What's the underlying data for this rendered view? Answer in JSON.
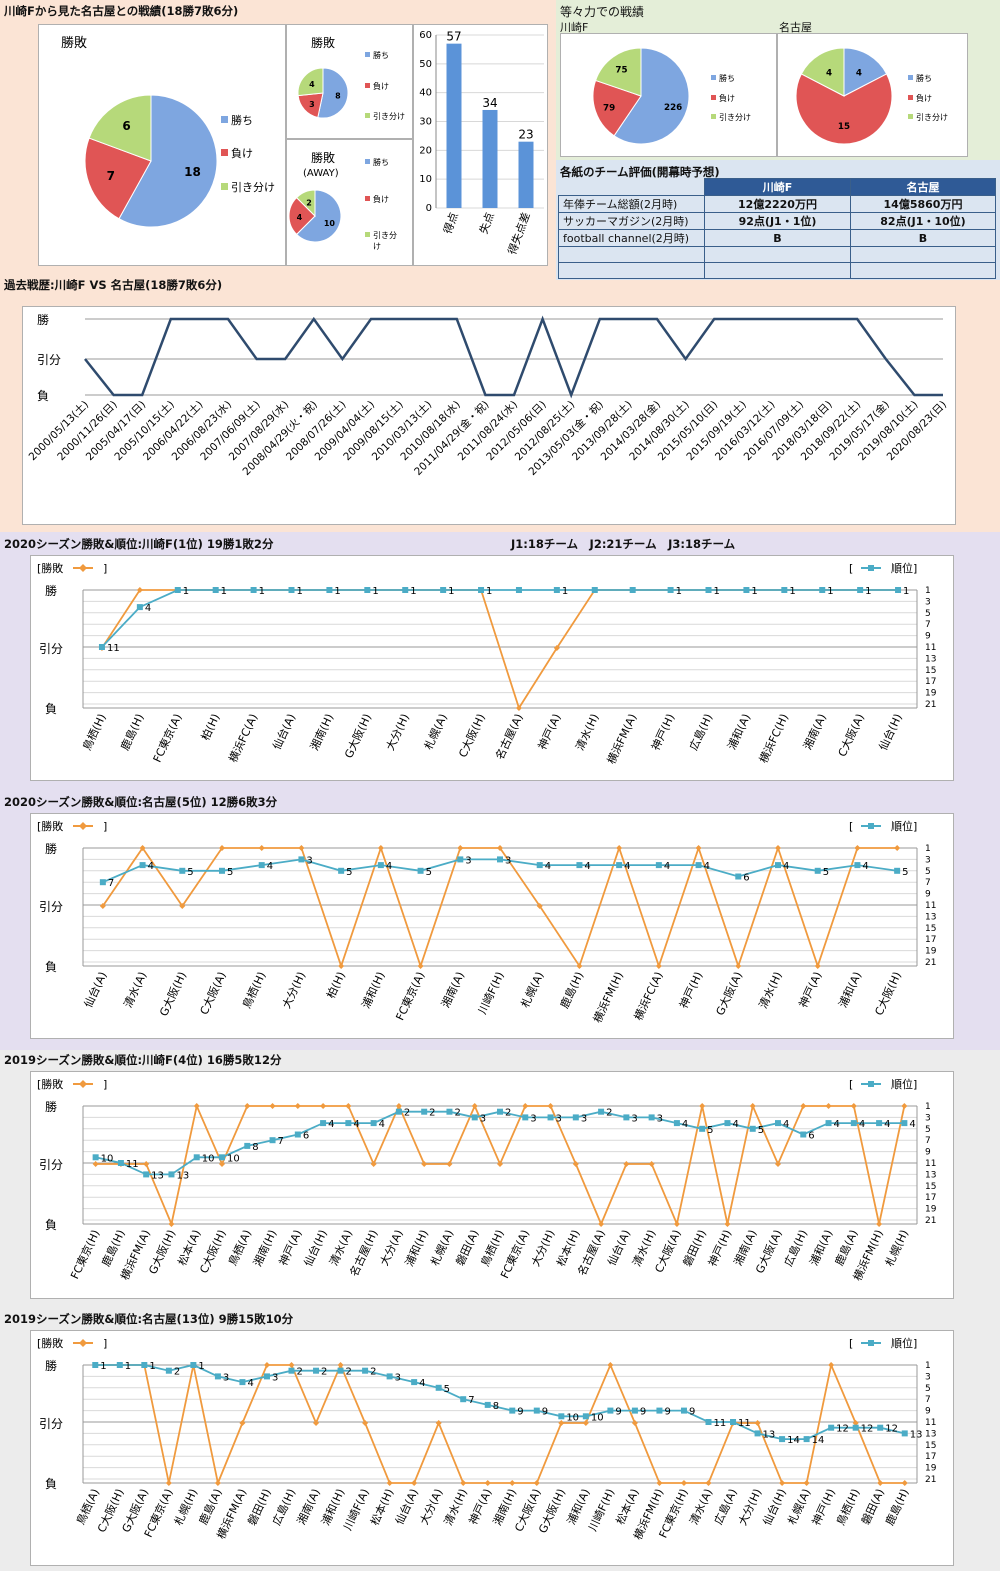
{
  "colors": {
    "win": "#7ea6e0",
    "loss": "#e05555",
    "draw": "#b6d97a",
    "nav": "#2f4b6e",
    "orange": "#f09a3e",
    "teal": "#4bacc6",
    "bar": "#5b93d8"
  },
  "s1": {
    "title": "川崎Fから見た名古屋との戦績(18勝7敗6分)",
    "pie_main": {
      "title": "勝敗",
      "values": [
        18,
        7,
        6
      ],
      "labels": [
        "18",
        "7",
        "6"
      ],
      "legend": [
        "勝ち",
        "負け",
        "引き分け"
      ]
    },
    "pie_home": {
      "title": "勝敗",
      "values": [
        8,
        3,
        4
      ],
      "labels": [
        "8",
        "3",
        "4"
      ],
      "legend": [
        "勝ち",
        "負け",
        "引き分け"
      ]
    },
    "pie_away": {
      "title": "勝敗",
      "title2": "(AWAY)",
      "values": [
        10,
        4,
        2
      ],
      "labels": [
        "10",
        "4",
        "2"
      ],
      "legend": [
        "勝ち",
        "負け",
        "引き分",
        "け"
      ]
    },
    "bars": {
      "categories": [
        "得点",
        "失点",
        "得失点差"
      ],
      "values": [
        57,
        34,
        23
      ],
      "labels": [
        "57",
        "34",
        "23"
      ],
      "ticks": [
        "0",
        "10",
        "20",
        "30",
        "40",
        "50",
        "60"
      ]
    }
  },
  "s2": {
    "title": "等々力での戦績",
    "sub_left": "川崎F",
    "sub_right": "名古屋",
    "pie_left": {
      "values": [
        226,
        79,
        75
      ],
      "labels": [
        "226",
        "79",
        "75"
      ],
      "legend": [
        "勝ち",
        "負け",
        "引き分け"
      ]
    },
    "pie_right": {
      "values": [
        4,
        15,
        4
      ],
      "labels": [
        "4",
        "15",
        "4"
      ],
      "legend": [
        "勝ち",
        "負け",
        "引き分け"
      ]
    }
  },
  "s3": {
    "title": "各紙のチーム評価(開幕時予想)",
    "headers": [
      "川崎F",
      "名古屋"
    ],
    "rows": [
      [
        "年俸チーム総額(2月時)",
        "12億2220万円",
        "14億5860万円"
      ],
      [
        "サッカーマガジン(2月時)",
        "92点(J1・1位)",
        "82点(J1・10位)"
      ],
      [
        "football channel(2月時)",
        "B",
        "B"
      ],
      [
        "",
        "",
        ""
      ],
      [
        "",
        "",
        ""
      ]
    ]
  },
  "s4": {
    "title": "過去戦歴:川崎F VS 名古屋(18勝7敗6分)",
    "ylabels": [
      "勝",
      "引分",
      "負"
    ],
    "dates": [
      "2000/05/13(土)",
      "2000/11/26(日)",
      "2005/04/17(日)",
      "2005/10/15(土)",
      "2006/04/22(土)",
      "2006/08/23(水)",
      "2007/06/09(土)",
      "2007/08/29(水)",
      "2008/04/29(火・祝)",
      "2008/07/26(土)",
      "2009/04/04(土)",
      "2009/08/15(土)",
      "2010/03/13(土)",
      "2010/08/18(水)",
      "2011/04/29(金・祝)",
      "2011/08/24(水)",
      "2012/05/06(日)",
      "2012/08/25(土)",
      "2013/05/03(金・祝)",
      "2013/09/28(土)",
      "2014/03/28(金)",
      "2014/08/30(土)",
      "2015/05/10(日)",
      "2015/09/19(土)",
      "2016/03/12(土)",
      "2016/07/09(土)",
      "2018/03/18(日)",
      "2018/09/22(土)",
      "2019/05/17(金)",
      "2019/08/10(土)",
      "2020/08/23(日)"
    ],
    "results": [
      1,
      0,
      0,
      2,
      2,
      2,
      1,
      1,
      2,
      1,
      2,
      2,
      2,
      2,
      0,
      0,
      2,
      0,
      2,
      2,
      2,
      1,
      2,
      2,
      2,
      2,
      2,
      2,
      1,
      0,
      0
    ]
  },
  "charts": [
    {
      "title": "2020シーズン勝敗&順位:川崎F(1位) 19勝1敗2分",
      "note": "J1:18チーム　J2:21チーム　J3:18チーム",
      "legend_left": "[勝敗",
      "legend_right": "順位]",
      "bracket_close": "]",
      "bracket_open": "[",
      "ylabels": [
        "勝",
        "引分",
        "負"
      ],
      "rticks": [
        "1",
        "3",
        "5",
        "7",
        "9",
        "11",
        "13",
        "15",
        "17",
        "19",
        "21"
      ],
      "categories": [
        "鳥栖(H)",
        "鹿島(H)",
        "FC東京(A)",
        "柏(H)",
        "横浜FC(A)",
        "仙台(A)",
        "湘南(H)",
        "G大阪(H)",
        "大分(H)",
        "札幌(A)",
        "C大阪(H)",
        "名古屋(A)",
        "神戸(A)",
        "清水(H)",
        "横浜FM(A)",
        "神戸(H)",
        "広島(H)",
        "浦和(A)",
        "横浜FC(H)",
        "湘南(A)",
        "C大阪(A)",
        "仙台(H)"
      ],
      "results": [
        1,
        2,
        2,
        2,
        2,
        2,
        2,
        2,
        2,
        2,
        2,
        0,
        1,
        2,
        2,
        2,
        2,
        2,
        2,
        2,
        2,
        2
      ],
      "ranks": [
        11,
        4,
        1,
        1,
        1,
        1,
        1,
        1,
        1,
        1,
        1,
        1,
        1,
        1,
        1,
        1,
        1,
        1,
        1,
        1,
        1,
        1
      ],
      "rank_labels": [
        "11",
        "4",
        "1",
        "1",
        "1",
        "1",
        "1",
        "1",
        "1",
        "1",
        "1",
        "",
        "1",
        "",
        "",
        "1",
        "1",
        "1",
        "1",
        "1",
        "1",
        "1"
      ]
    },
    {
      "title": "2020シーズン勝敗&順位:名古屋(5位) 12勝6敗3分",
      "legend_left": "[勝敗",
      "legend_right": "順位]",
      "bracket_close": "]",
      "bracket_open": "[",
      "ylabels": [
        "勝",
        "引分",
        "負"
      ],
      "rticks": [
        "1",
        "3",
        "5",
        "7",
        "9",
        "11",
        "13",
        "15",
        "17",
        "19",
        "21"
      ],
      "categories": [
        "仙台(A)",
        "清水(A)",
        "G大阪(H)",
        "C大阪(A)",
        "鳥栖(H)",
        "大分(H)",
        "柏(H)",
        "浦和(H)",
        "FC東京(A)",
        "湘南(A)",
        "川崎F(H)",
        "札幌(A)",
        "鹿島(H)",
        "横浜FM(H)",
        "横浜FC(A)",
        "神戸(H)",
        "G大阪(A)",
        "清水(H)",
        "神戸(A)",
        "浦和(A)",
        "C大阪(H)"
      ],
      "results": [
        1,
        2,
        1,
        2,
        2,
        2,
        0,
        2,
        0,
        2,
        2,
        1,
        0,
        2,
        0,
        2,
        0,
        2,
        0,
        2,
        2
      ],
      "ranks": [
        7,
        4,
        5,
        5,
        4,
        3,
        5,
        4,
        5,
        3,
        3,
        4,
        4,
        4,
        4,
        4,
        6,
        4,
        5,
        4,
        5
      ],
      "rank_labels": [
        "7",
        "4",
        "5",
        "5",
        "4",
        "3",
        "5",
        "4",
        "5",
        "3",
        "3",
        "4",
        "4",
        "4",
        "4",
        "4",
        "6",
        "4",
        "5",
        "4",
        "5"
      ]
    },
    {
      "title": "2019シーズン勝敗&順位:川崎F(4位) 16勝5敗12分",
      "legend_left": "[勝敗",
      "legend_right": "順位]",
      "bracket_close": "]",
      "bracket_open": "[",
      "ylabels": [
        "勝",
        "引分",
        "負"
      ],
      "rticks": [
        "1",
        "3",
        "5",
        "7",
        "9",
        "11",
        "13",
        "15",
        "17",
        "19",
        "21"
      ],
      "categories": [
        "FC東京(H)",
        "鹿島(H)",
        "横浜FM(A)",
        "G大阪(H)",
        "松本(A)",
        "C大阪(H)",
        "鳥栖(A)",
        "湘南(H)",
        "神戸(A)",
        "仙台(H)",
        "清水(A)",
        "名古屋(H)",
        "大分(A)",
        "浦和(H)",
        "札幌(A)",
        "磐田(A)",
        "鳥栖(H)",
        "FC東京(A)",
        "大分(H)",
        "松本(H)",
        "名古屋(A)",
        "仙台(A)",
        "清水(H)",
        "C大阪(A)",
        "磐田(H)",
        "神戸(H)",
        "湘南(A)",
        "G大阪(A)",
        "広島(H)",
        "浦和(A)",
        "鹿島(A)",
        "横浜FM(H)",
        "札幌(H)"
      ],
      "results": [
        1,
        1,
        1,
        0,
        2,
        1,
        2,
        2,
        2,
        2,
        2,
        1,
        2,
        1,
        1,
        2,
        1,
        2,
        2,
        1,
        0,
        1,
        1,
        0,
        2,
        0,
        2,
        1,
        2,
        2,
        2,
        0,
        2
      ],
      "ranks": [
        10,
        11,
        13,
        13,
        10,
        10,
        8,
        7,
        6,
        4,
        4,
        4,
        2,
        2,
        2,
        3,
        2,
        3,
        3,
        3,
        2,
        3,
        3,
        4,
        5,
        4,
        5,
        4,
        6,
        4,
        4,
        4,
        4
      ],
      "rank_labels": [
        "10",
        "11",
        "13",
        "13",
        "10",
        "10",
        "8",
        "7",
        "6",
        "4",
        "4",
        "4",
        "2",
        "2",
        "2",
        "3",
        "2",
        "3",
        "3",
        "3",
        "2",
        "3",
        "3",
        "4",
        "5",
        "4",
        "5",
        "4",
        "6",
        "4",
        "4",
        "4",
        "4"
      ]
    },
    {
      "title": "2019シーズン勝敗&順位:名古屋(13位) 9勝15敗10分",
      "legend_left": "[勝敗",
      "legend_right": "順位]",
      "bracket_close": "]",
      "bracket_open": "[",
      "ylabels": [
        "勝",
        "引分",
        "負"
      ],
      "rticks": [
        "1",
        "3",
        "5",
        "7",
        "9",
        "11",
        "13",
        "15",
        "17",
        "19",
        "21"
      ],
      "categories": [
        "鳥栖(A)",
        "C大阪(H)",
        "G大阪(A)",
        "FC東京(A)",
        "札幌(H)",
        "鹿島(A)",
        "横浜FM(A)",
        "磐田(H)",
        "広島(H)",
        "湘南(A)",
        "浦和(H)",
        "川崎F(A)",
        "松本(H)",
        "仙台(A)",
        "大分(A)",
        "清水(H)",
        "神戸(A)",
        "湘南(H)",
        "C大阪(A)",
        "G大阪(H)",
        "浦和(A)",
        "川崎F(H)",
        "松本(A)",
        "横浜FM(H)",
        "FC東京(H)",
        "清水(A)",
        "広島(A)",
        "大分(H)",
        "仙台(H)",
        "札幌(A)",
        "神戸(H)",
        "鳥栖(H)",
        "磐田(A)",
        "鹿島(H)"
      ],
      "results": [
        2,
        2,
        2,
        0,
        2,
        0,
        1,
        2,
        2,
        1,
        2,
        1,
        0,
        0,
        1,
        0,
        0,
        0,
        0,
        1,
        1,
        2,
        1,
        0,
        0,
        0,
        1,
        1,
        0,
        0,
        2,
        1,
        0,
        0
      ],
      "ranks": [
        1,
        1,
        1,
        2,
        1,
        3,
        4,
        3,
        2,
        2,
        2,
        2,
        3,
        4,
        5,
        7,
        8,
        9,
        9,
        10,
        10,
        9,
        9,
        9,
        9,
        11,
        11,
        13,
        14,
        14,
        12,
        12,
        12,
        13
      ],
      "rank_labels": [
        "1",
        "1",
        "1",
        "2",
        "1",
        "3",
        "4",
        "3",
        "2",
        "2",
        "2",
        "2",
        "3",
        "4",
        "5",
        "7",
        "8",
        "9",
        "9",
        "10",
        "10",
        "9",
        "9",
        "9",
        "9",
        "11",
        "11",
        "13",
        "14",
        "14",
        "12",
        "12",
        "12",
        "13"
      ]
    }
  ]
}
